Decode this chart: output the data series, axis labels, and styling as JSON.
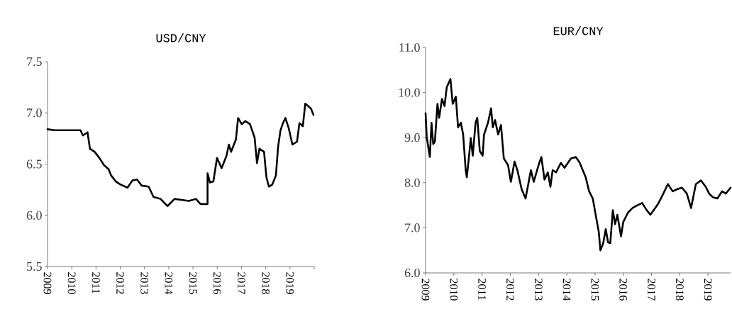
{
  "chart_data": [
    {
      "type": "line",
      "title": "USD/CNY",
      "x": [
        2009.0,
        2009.29,
        2010.36,
        2010.46,
        2010.65,
        2010.75,
        2010.94,
        2011.14,
        2011.33,
        2011.52,
        2011.62,
        2011.82,
        2012.01,
        2012.3,
        2012.5,
        2012.69,
        2012.88,
        2013.17,
        2013.37,
        2013.66,
        2013.95,
        2014.24,
        2014.53,
        2014.83,
        2015.12,
        2015.31,
        2015.6,
        2015.6,
        2015.7,
        2015.84,
        2015.99,
        2016.18,
        2016.38,
        2016.48,
        2016.57,
        2016.77,
        2016.86,
        2017.01,
        2017.16,
        2017.35,
        2017.54,
        2017.64,
        2017.74,
        2017.93,
        2018.03,
        2018.13,
        2018.27,
        2018.42,
        2018.51,
        2018.61,
        2018.71,
        2018.81,
        2018.95,
        2019.1,
        2019.29,
        2019.39,
        2019.53,
        2019.63,
        2019.78,
        2019.87,
        2019.97
      ],
      "series": [
        {
          "color": "#000000",
          "values": [
            6.84,
            6.83,
            6.83,
            6.78,
            6.81,
            6.65,
            6.62,
            6.56,
            6.49,
            6.45,
            6.39,
            6.33,
            6.3,
            6.27,
            6.34,
            6.35,
            6.29,
            6.28,
            6.18,
            6.16,
            6.09,
            6.16,
            6.15,
            6.14,
            6.16,
            6.11,
            6.11,
            6.41,
            6.32,
            6.33,
            6.56,
            6.46,
            6.58,
            6.69,
            6.62,
            6.74,
            6.95,
            6.89,
            6.92,
            6.89,
            6.76,
            6.51,
            6.65,
            6.62,
            6.37,
            6.28,
            6.3,
            6.39,
            6.67,
            6.83,
            6.9,
            6.95,
            6.85,
            6.69,
            6.72,
            6.9,
            6.87,
            7.09,
            7.06,
            7.04,
            6.98
          ]
        }
      ],
      "xlim": [
        2009,
        2020
      ],
      "xticks": [
        2009,
        2010,
        2011,
        2012,
        2013,
        2014,
        2015,
        2016,
        2017,
        2018,
        2019,
        {
          "value": 2020,
          "label": null
        }
      ],
      "ylim": [
        5.5,
        7.5
      ],
      "yticks": [
        5.5,
        {
          "value": 6,
          "label": "6.0"
        },
        6.5,
        {
          "value": 7,
          "label": "7.0"
        },
        7.5
      ]
    },
    {
      "type": "line",
      "title": "EUR/CNY",
      "x": [
        2009.0,
        2009.04,
        2009.15,
        2009.21,
        2009.27,
        2009.33,
        2009.42,
        2009.48,
        2009.58,
        2009.67,
        2009.75,
        2009.88,
        2009.96,
        2010.07,
        2010.15,
        2010.25,
        2010.33,
        2010.42,
        2010.46,
        2010.54,
        2010.6,
        2010.67,
        2010.77,
        2010.83,
        2010.92,
        2011.02,
        2011.07,
        2011.21,
        2011.32,
        2011.38,
        2011.46,
        2011.57,
        2011.67,
        2011.77,
        2011.92,
        2012.02,
        2012.15,
        2012.25,
        2012.4,
        2012.54,
        2012.73,
        2012.83,
        2013.0,
        2013.1,
        2013.21,
        2013.33,
        2013.42,
        2013.5,
        2013.62,
        2013.79,
        2013.92,
        2014.04,
        2014.15,
        2014.32,
        2014.46,
        2014.67,
        2014.79,
        2014.92,
        2015.04,
        2015.13,
        2015.19,
        2015.29,
        2015.38,
        2015.46,
        2015.54,
        2015.63,
        2015.71,
        2015.79,
        2015.92,
        2016.0,
        2016.17,
        2016.33,
        2016.5,
        2016.67,
        2016.83,
        2016.96,
        2017.13,
        2017.25,
        2017.42,
        2017.58,
        2017.75,
        2017.92,
        2018.08,
        2018.25,
        2018.4,
        2018.57,
        2018.75,
        2018.92,
        2019.04,
        2019.17,
        2019.33,
        2019.5,
        2019.63,
        2019.8
      ],
      "series": [
        {
          "color": "#000000",
          "values": [
            9.54,
            9.02,
            8.57,
            9.33,
            8.86,
            8.91,
            9.75,
            9.44,
            9.86,
            9.7,
            10.12,
            10.3,
            9.75,
            9.91,
            9.23,
            9.33,
            9.07,
            8.28,
            8.12,
            8.6,
            8.99,
            8.6,
            9.33,
            9.44,
            8.7,
            8.6,
            9.07,
            9.33,
            9.65,
            9.23,
            9.39,
            9.07,
            9.28,
            8.54,
            8.39,
            8.02,
            8.47,
            8.28,
            7.86,
            7.65,
            8.28,
            8.02,
            8.39,
            8.57,
            8.07,
            8.23,
            7.91,
            8.28,
            8.23,
            8.44,
            8.33,
            8.44,
            8.54,
            8.57,
            8.44,
            8.12,
            7.81,
            7.65,
            7.23,
            6.92,
            6.5,
            6.66,
            6.97,
            6.68,
            6.66,
            7.39,
            7.08,
            7.29,
            6.81,
            7.13,
            7.34,
            7.44,
            7.5,
            7.55,
            7.39,
            7.29,
            7.44,
            7.55,
            7.76,
            7.97,
            7.81,
            7.86,
            7.89,
            7.76,
            7.44,
            7.97,
            8.05,
            7.91,
            7.76,
            7.68,
            7.65,
            7.81,
            7.76,
            7.89
          ]
        }
      ],
      "xlim": [
        2009,
        2019.8
      ],
      "xticks": [
        2009,
        2010,
        2011,
        2012,
        2013,
        2014,
        2015,
        2016,
        2017,
        2018,
        2019
      ],
      "ylim": [
        6,
        11
      ],
      "yticks": [
        {
          "value": 6,
          "label": "6.0"
        },
        {
          "value": 7,
          "label": "7.0"
        },
        {
          "value": 8,
          "label": "8.0"
        },
        {
          "value": 9,
          "label": "9.0"
        },
        {
          "value": 10,
          "label": "10.0"
        },
        {
          "value": 11,
          "label": "11.0"
        }
      ]
    }
  ]
}
